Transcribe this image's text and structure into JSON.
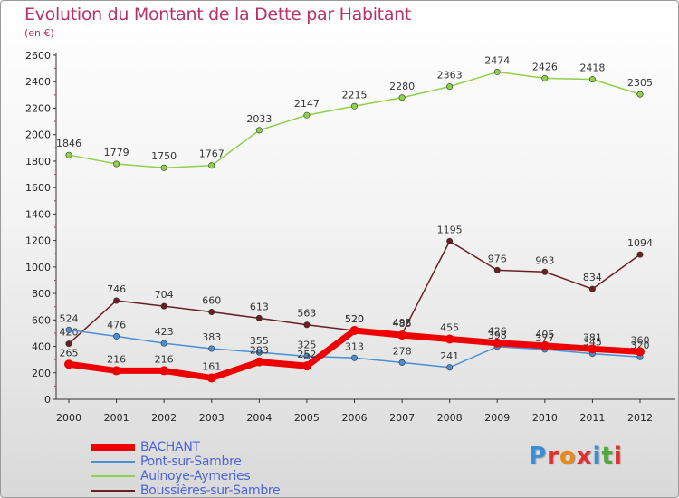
{
  "title": "Evolution du Montant de la Dette par Habitant",
  "subtitle": "(en €)",
  "logo": {
    "text": "Proxiti",
    "letters": [
      {
        "ch": "P",
        "color": "#3b8fd6"
      },
      {
        "ch": "r",
        "color": "#e0302c"
      },
      {
        "ch": "o",
        "color": "#e88a1a"
      },
      {
        "ch": "x",
        "color": "#e0302c"
      },
      {
        "ch": "i",
        "color": "#3b8fd6"
      },
      {
        "ch": "t",
        "color": "#4fa83a"
      },
      {
        "ch": "i",
        "color": "#e0302c"
      }
    ]
  },
  "chart_data": {
    "type": "line",
    "x": [
      "2000",
      "2001",
      "2002",
      "2003",
      "2004",
      "2005",
      "2006",
      "2007",
      "2008",
      "2009",
      "2010",
      "2011",
      "2012"
    ],
    "ylim": [
      0,
      2600
    ],
    "yticks": [
      0,
      200,
      400,
      600,
      800,
      1000,
      1200,
      1400,
      1600,
      1800,
      2000,
      2200,
      2400,
      2600
    ],
    "grid": false,
    "legend_position": "bottom-left",
    "series": [
      {
        "name": "Aulnoye-Aymeries",
        "color": "#8fd14a",
        "values": [
          1846,
          1779,
          1750,
          1767,
          2033,
          2147,
          2215,
          2280,
          2363,
          2474,
          2426,
          2418,
          2305
        ]
      },
      {
        "name": "Boussières-sur-Sambre",
        "color": "#6a1f25",
        "values": [
          420,
          746,
          704,
          660,
          613,
          563,
          520,
          493,
          1195,
          976,
          963,
          834,
          1094
        ]
      },
      {
        "name": "Pont-sur-Sambre",
        "color": "#4a8fd6",
        "values": [
          524,
          476,
          423,
          383,
          355,
          325,
          313,
          278,
          241,
          398,
          377,
          345,
          320
        ]
      },
      {
        "name": "BACHANT",
        "color": "#ee0000",
        "values": [
          265,
          216,
          216,
          161,
          283,
          252,
          520,
          485,
          455,
          426,
          405,
          381,
          360
        ]
      }
    ],
    "legend_order": [
      "BACHANT",
      "Pont-sur-Sambre",
      "Aulnoye-Aymeries",
      "Boussières-sur-Sambre"
    ]
  }
}
